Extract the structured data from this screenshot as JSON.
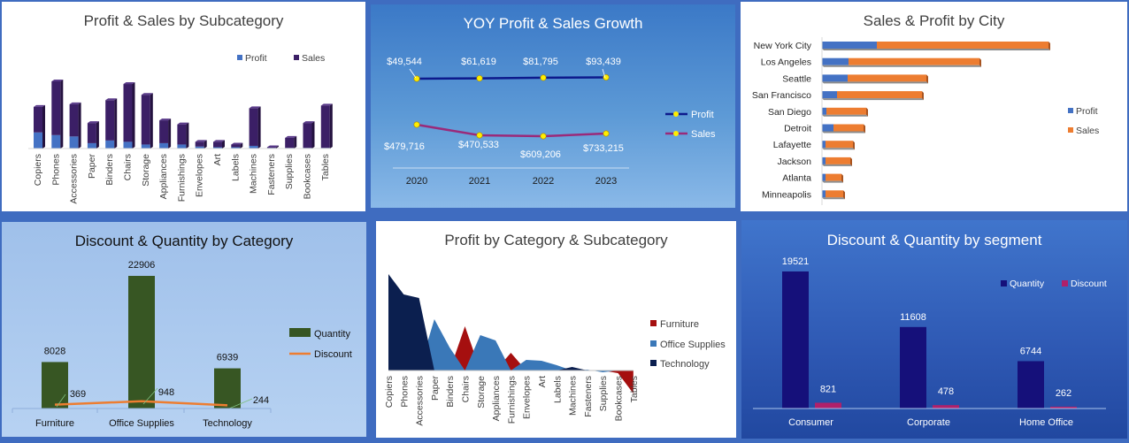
{
  "chart_data": [
    {
      "id": "subcat",
      "type": "bar",
      "title": "Profit & Sales by Subcategory",
      "categories": [
        "Copiers",
        "Phones",
        "Accessories",
        "Paper",
        "Binders",
        "Chairs",
        "Storage",
        "Appliances",
        "Furnishings",
        "Envelopes",
        "Art",
        "Labels",
        "Machines",
        "Fasteners",
        "Supplies",
        "Bookcases",
        "Tables"
      ],
      "series": [
        {
          "name": "Profit",
          "values": [
            12,
            10,
            9,
            4,
            6,
            5,
            3,
            4,
            3,
            1.5,
            1,
            1,
            2,
            0.5,
            0.5,
            0.5,
            0.5
          ]
        },
        {
          "name": "Sales",
          "values": [
            31,
            50,
            33,
            19,
            36,
            48,
            40,
            21,
            18,
            5,
            5,
            3,
            30,
            1,
            8,
            19,
            32
          ]
        }
      ],
      "colors": {
        "Profit": "#4472c4",
        "Sales": "#3b1f66"
      }
    },
    {
      "id": "yoy",
      "type": "line",
      "title": "YOY Profit & Sales Growth",
      "x": [
        "2020",
        "2021",
        "2022",
        "2023"
      ],
      "series": [
        {
          "name": "Profit",
          "values": [
            49544,
            61619,
            81795,
            93439
          ],
          "labels": [
            "$49,544",
            "$61,619",
            "$81,795",
            "$93,439"
          ]
        },
        {
          "name": "Sales",
          "values": [
            479716,
            470533,
            609206,
            733215
          ],
          "labels": [
            "$479,716",
            "$470,533",
            "$609,206",
            "$733,215"
          ]
        }
      ],
      "colors": {
        "Profit": "#0d1a8c",
        "Sales": "#9a2a7a",
        "marker": "#ffee00"
      }
    },
    {
      "id": "city",
      "type": "bar",
      "orientation": "horizontal",
      "title": "Sales & Profit by City",
      "categories": [
        "New York City",
        "Los Angeles",
        "Seattle",
        "San Francisco",
        "San Diego",
        "Detroit",
        "Lafayette",
        "Jackson",
        "Atlanta",
        "Minneapolis"
      ],
      "series": [
        {
          "name": "Profit",
          "values": [
            62,
            30,
            29,
            17,
            5,
            13,
            4,
            4,
            4,
            4
          ]
        },
        {
          "name": "Sales",
          "values": [
            256,
            178,
            118,
            113,
            50,
            47,
            35,
            32,
            22,
            24
          ]
        }
      ],
      "colors": {
        "Profit": "#4472c4",
        "Sales": "#ed7d31"
      }
    },
    {
      "id": "cat_dq",
      "type": "bar",
      "title": "Discount & Quantity by Category",
      "categories": [
        "Furniture",
        "Office Supplies",
        "Technology"
      ],
      "series": [
        {
          "name": "Quantity",
          "values": [
            8028,
            22906,
            6939
          ]
        },
        {
          "name": "Discount",
          "values": [
            369,
            948,
            244
          ]
        }
      ],
      "ylim": [
        0,
        25000
      ],
      "colors": {
        "Quantity": "#375623",
        "Discount": "#ed7d31"
      }
    },
    {
      "id": "profit_cat",
      "type": "area",
      "title": "Profit by Category & Subcategory",
      "categories": [
        "Copiers",
        "Phones",
        "Accessories",
        "Paper",
        "Binders",
        "Chairs",
        "Storage",
        "Appliances",
        "Furnishings",
        "Envelopes",
        "Art",
        "Labels",
        "Machines",
        "Fasteners",
        "Supplies",
        "Bookcases",
        "Tables"
      ],
      "series": [
        {
          "name": "Furniture",
          "values": [
            0,
            0,
            0,
            0,
            0,
            50,
            0,
            0,
            20,
            0,
            0,
            0,
            0,
            0,
            0,
            -3,
            -26
          ]
        },
        {
          "name": "Office Supplies",
          "values": [
            0,
            0,
            0,
            58,
            26,
            0,
            40,
            34,
            0,
            12,
            11,
            6,
            0,
            1,
            -2,
            0,
            0
          ]
        },
        {
          "name": "Technology",
          "values": [
            109,
            86,
            82,
            0,
            0,
            0,
            0,
            0,
            0,
            0,
            0,
            0,
            4,
            0,
            0,
            0,
            0
          ]
        }
      ],
      "colors": {
        "Furniture": "#a50f0f",
        "Office Supplies": "#3a78b8",
        "Technology": "#0b1f4f"
      }
    },
    {
      "id": "seg_dq",
      "type": "bar",
      "title": "Discount & Quantity by segment",
      "categories": [
        "Consumer",
        "Corporate",
        "Home Office"
      ],
      "series": [
        {
          "name": "Quantity",
          "values": [
            19521,
            11608,
            6744
          ]
        },
        {
          "name": "Discount",
          "values": [
            821,
            478,
            262
          ]
        }
      ],
      "ylim": [
        0,
        20000
      ],
      "colors": {
        "Quantity": "#15107a",
        "Discount": "#b0206a"
      }
    }
  ]
}
